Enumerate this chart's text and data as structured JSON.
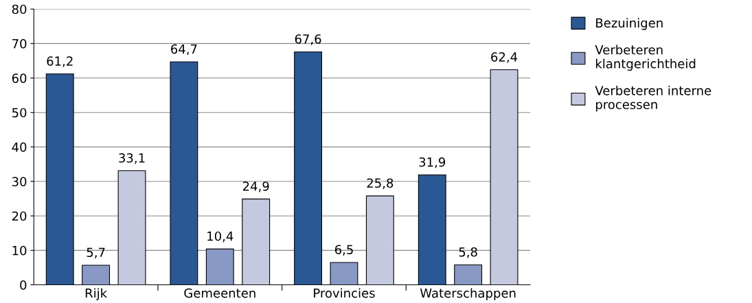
{
  "chart_data": {
    "type": "bar",
    "categories": [
      "Rijk",
      "Gemeenten",
      "Provincies",
      "Waterschappen"
    ],
    "series": [
      {
        "name": "Bezuinigen",
        "color": "#2a5894",
        "values": [
          61.2,
          64.7,
          67.6,
          31.9
        ],
        "value_labels": [
          "61,2",
          "64,7",
          "67,6",
          "31,9"
        ]
      },
      {
        "name": "Verbeteren\nklantgerichtheid",
        "color": "#8999c6",
        "values": [
          5.7,
          10.4,
          6.5,
          5.8
        ],
        "value_labels": [
          "5,7",
          "10,4",
          "6,5",
          "5,8"
        ]
      },
      {
        "name": "Verbeteren interne\nprocessen",
        "color": "#c4c9df",
        "values": [
          33.1,
          24.9,
          25.8,
          62.4
        ],
        "value_labels": [
          "33,1",
          "24,9",
          "25,8",
          "62,4"
        ]
      }
    ],
    "ylim": [
      0,
      80
    ],
    "yticks": [
      0,
      10,
      20,
      30,
      40,
      50,
      60,
      70,
      80
    ],
    "grid": "y",
    "legend": "top right"
  }
}
